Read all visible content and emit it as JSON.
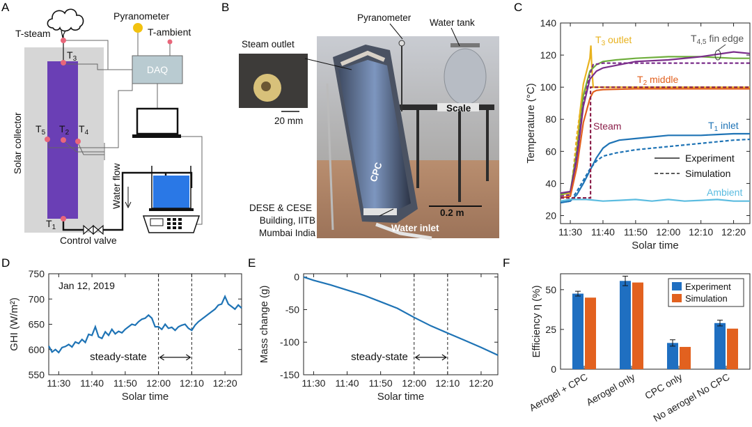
{
  "panels": {
    "a": {
      "letter": "A",
      "labels": {
        "t_steam": "T-steam",
        "t3": "T",
        "t3_sub": "3",
        "pyranometer": "Pyranometer",
        "t_ambient": "T-ambient",
        "daq": "DAQ",
        "solar_collector": "Solar collector",
        "t5": "T",
        "t5_sub": "5",
        "t2": "T",
        "t2_sub": "2",
        "t4": "T",
        "t4_sub": "4",
        "water_flow": "Water flow",
        "t1": "T",
        "t1_sub": "1",
        "control_valve": "Control valve"
      },
      "colors": {
        "collector": "#6a3fb5",
        "panel_bg": "#d6d6d6",
        "daq": "#b9cbd1",
        "sensor": "#e9667a",
        "pyranometer": "#f2c20f",
        "water": "#2a78e6"
      }
    },
    "b": {
      "letter": "B",
      "labels": {
        "pyranometer": "Pyranometer",
        "water_tank": "Water tank",
        "steam_outlet": "Steam outlet",
        "scale_bar_inset": "20 mm",
        "scale": "Scale",
        "cpc": "CPC",
        "location_1": "DESE & CESE",
        "location_2": "Building, IITB",
        "location_3": "Mumbai India",
        "scale_bar": "0.2 m",
        "water_inlet": "Water inlet"
      }
    },
    "c": {
      "letter": "C"
    },
    "d": {
      "letter": "D"
    },
    "e": {
      "letter": "E"
    },
    "f": {
      "letter": "F"
    }
  },
  "chart_data": [
    {
      "id": "C",
      "type": "line",
      "xlabel": "Solar time",
      "ylabel": "Temperature (°C)",
      "x_ticks": [
        "11:30",
        "11:40",
        "11:50",
        "12:00",
        "12:10",
        "12:20"
      ],
      "x_tick_minutes": [
        0,
        10,
        20,
        30,
        40,
        50
      ],
      "xlim_minutes": [
        -3,
        55
      ],
      "ylim": [
        15,
        140
      ],
      "y_ticks": [
        20,
        40,
        60,
        80,
        100,
        120,
        140
      ],
      "legend": {
        "placement": "right",
        "entries": [
          {
            "label": "Experiment",
            "style": "solid"
          },
          {
            "label": "Simulation",
            "style": "dashed"
          }
        ]
      },
      "annotations": [
        {
          "text": "T",
          "sub": "3",
          "suffix": " outlet",
          "color": "#e8b21e"
        },
        {
          "text": "T",
          "sub": "4,5",
          "suffix": " fin edge",
          "color": "#555555"
        },
        {
          "text": "T",
          "sub": "2",
          "suffix": " middle",
          "color": "#e2611f"
        },
        {
          "text": "Steam",
          "color": "#8b1f4a"
        },
        {
          "text": "T",
          "sub": "1",
          "suffix": " inlet",
          "color": "#1e73b5"
        },
        {
          "text": "Ambient",
          "color": "#5bbce0"
        }
      ],
      "series": [
        {
          "color": "#e8b21e",
          "dash": false,
          "x": [
            -3,
            0,
            1,
            2,
            3,
            4,
            5,
            6,
            6.3,
            6.6,
            7,
            10,
            20,
            30,
            40,
            55
          ],
          "y": [
            33,
            34,
            45,
            62,
            85,
            102,
            110,
            118,
            126,
            112,
            100,
            100,
            100,
            100,
            100,
            100
          ]
        },
        {
          "color": "#e8b21e",
          "dash": true,
          "x": [
            -3,
            0,
            1,
            2,
            3,
            4,
            5,
            6,
            7,
            10,
            55
          ],
          "y": [
            31,
            32,
            50,
            70,
            85,
            95,
            99,
            100,
            100,
            100,
            100
          ]
        },
        {
          "color": "#6fae3d",
          "dash": false,
          "x": [
            -3,
            0,
            2,
            4,
            6,
            8,
            10,
            14,
            20,
            30,
            40,
            50,
            55
          ],
          "y": [
            33,
            35,
            60,
            95,
            110,
            114,
            116,
            117,
            118,
            119,
            119,
            118,
            118
          ]
        },
        {
          "color": "#7a2d8a",
          "dash": false,
          "x": [
            -3,
            0,
            2,
            4,
            6,
            8,
            10,
            15,
            20,
            30,
            40,
            50,
            55
          ],
          "y": [
            34,
            35,
            55,
            88,
            105,
            110,
            112,
            114,
            116,
            117,
            119,
            122,
            121
          ]
        },
        {
          "color": "#7a2d8a",
          "dash": true,
          "x": [
            -3,
            0,
            2,
            4,
            6,
            7,
            10,
            20,
            30,
            40,
            55
          ],
          "y": [
            32,
            33,
            58,
            90,
            108,
            114,
            115,
            115,
            115,
            115,
            115
          ]
        },
        {
          "color": "#e2611f",
          "dash": false,
          "x": [
            -3,
            0,
            2,
            4,
            6,
            7,
            8,
            10,
            20,
            30,
            40,
            55
          ],
          "y": [
            31,
            32,
            50,
            78,
            93,
            97,
            98,
            98.5,
            99,
            99,
            99,
            99
          ]
        },
        {
          "color": "#1e73b5",
          "dash": false,
          "x": [
            -3,
            0,
            2,
            4,
            6,
            8,
            10,
            12,
            15,
            20,
            25,
            30,
            35,
            40,
            45,
            50,
            55
          ],
          "y": [
            28,
            29,
            33,
            40,
            48,
            56,
            62,
            65,
            67,
            68,
            69,
            70,
            70,
            70,
            70.5,
            71,
            71
          ]
        },
        {
          "color": "#1e73b5",
          "dash": true,
          "x": [
            -3,
            0,
            2,
            4,
            6,
            8,
            10,
            14,
            20,
            30,
            40,
            50,
            55
          ],
          "y": [
            28,
            29,
            35,
            42,
            49,
            54,
            57,
            59,
            61,
            63,
            65,
            67,
            67.5
          ]
        },
        {
          "color": "#8b1f4a",
          "dash": true,
          "x": [
            -3,
            6.2,
            6.2,
            55
          ],
          "y": [
            31,
            31,
            100,
            100
          ]
        },
        {
          "color": "#5bbce0",
          "dash": false,
          "x": [
            -3,
            0,
            5,
            10,
            15,
            20,
            25,
            30,
            35,
            40,
            45,
            50,
            55
          ],
          "y": [
            29,
            30,
            30,
            29,
            29.5,
            30,
            29,
            30,
            29,
            29.5,
            30,
            29,
            29
          ]
        }
      ]
    },
    {
      "id": "D",
      "type": "line",
      "xlabel": "Solar time",
      "ylabel": "GHI (W/m²)",
      "annotation_date": "Jan 12, 2019",
      "steady_state_label": "steady-state",
      "x_ticks": [
        "11:30",
        "11:40",
        "11:50",
        "12:00",
        "12:10",
        "12:20"
      ],
      "x_tick_minutes": [
        0,
        10,
        20,
        30,
        40,
        50
      ],
      "xlim_minutes": [
        -3,
        55
      ],
      "ylim": [
        550,
        750
      ],
      "y_ticks": [
        550,
        600,
        650,
        700,
        750
      ],
      "steady_state_minutes": [
        30,
        40
      ],
      "series": [
        {
          "color": "#1e73b5",
          "x": [
            -3,
            -2,
            -1,
            0,
            1,
            2,
            3,
            4,
            5,
            6,
            7,
            8,
            9,
            10,
            11,
            12,
            13,
            14,
            15,
            16,
            17,
            18,
            19,
            20,
            21,
            22,
            23,
            24,
            25,
            26,
            27,
            28,
            29,
            30,
            31,
            32,
            33,
            34,
            35,
            36,
            37,
            38,
            39,
            40,
            41,
            42,
            43,
            44,
            45,
            46,
            47,
            48,
            49,
            50,
            51,
            52,
            53,
            54,
            55
          ],
          "y": [
            607,
            595,
            600,
            594,
            604,
            606,
            610,
            605,
            615,
            612,
            620,
            614,
            630,
            628,
            645,
            625,
            622,
            635,
            628,
            640,
            631,
            636,
            633,
            640,
            645,
            650,
            648,
            655,
            660,
            662,
            668,
            662,
            645,
            645,
            640,
            650,
            642,
            644,
            638,
            645,
            648,
            650,
            642,
            638,
            648,
            655,
            660,
            665,
            670,
            675,
            680,
            688,
            690,
            705,
            690,
            685,
            680,
            688,
            682
          ]
        }
      ]
    },
    {
      "id": "E",
      "type": "line",
      "xlabel": "Solar time",
      "ylabel": "Mass change (g)",
      "steady_state_label": "steady-state",
      "x_ticks": [
        "11:30",
        "11:40",
        "11:50",
        "12:00",
        "12:10",
        "12:20"
      ],
      "x_tick_minutes": [
        0,
        10,
        20,
        30,
        40,
        50
      ],
      "xlim_minutes": [
        -3,
        55
      ],
      "ylim": [
        -150,
        5
      ],
      "y_ticks": [
        0,
        -50,
        -100,
        -150
      ],
      "steady_state_minutes": [
        30,
        40
      ],
      "series": [
        {
          "color": "#1e73b5",
          "x": [
            -3,
            0,
            5,
            10,
            15,
            20,
            25,
            30,
            35,
            40,
            45,
            50,
            55
          ],
          "y": [
            0,
            -5,
            -12,
            -20,
            -28,
            -38,
            -48,
            -62,
            -75,
            -86,
            -97,
            -108,
            -120
          ]
        }
      ]
    },
    {
      "id": "F",
      "type": "bar",
      "ylabel": "Efficiency η (%)",
      "categories": [
        "Aerogel + CPC",
        "Aerogel only",
        "CPC only",
        "No aerogel No CPC"
      ],
      "ylim": [
        0,
        60
      ],
      "y_ticks": [
        0,
        25,
        50
      ],
      "legend": {
        "placement": "top-right"
      },
      "series": [
        {
          "name": "Experiment",
          "color": "#1f6fc1",
          "values": [
            47.5,
            55.5,
            16.5,
            29
          ],
          "errors": [
            1.5,
            3,
            2,
            1.8
          ]
        },
        {
          "name": "Simulation",
          "color": "#e2611f",
          "values": [
            45,
            54.5,
            14,
            25.5
          ]
        }
      ]
    }
  ]
}
